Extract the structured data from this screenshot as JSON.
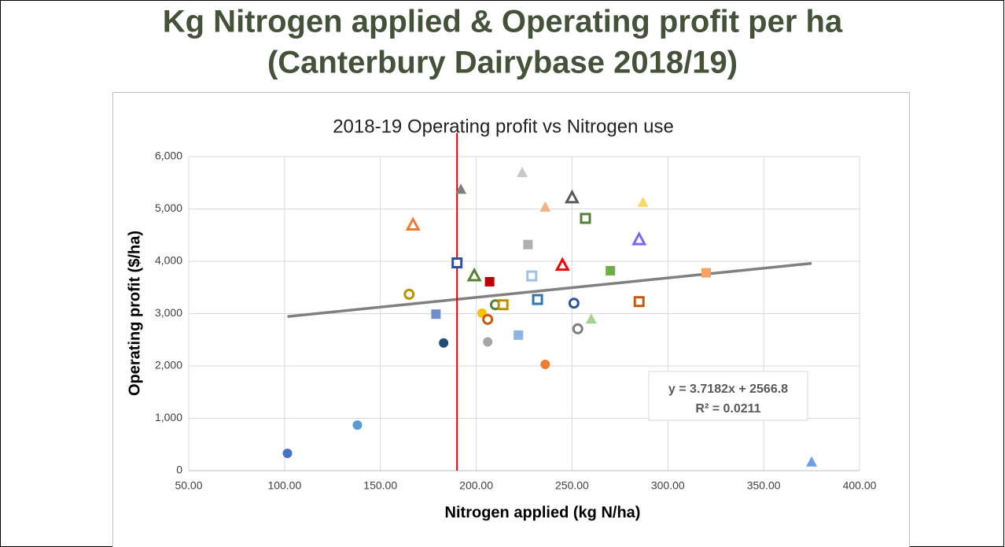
{
  "chart_data": {
    "type": "scatter",
    "slide_title": [
      "Kg Nitrogen applied & Operating profit per ha",
      "(Canterbury Dairybase 2018/19)"
    ],
    "title": "2018-19 Operating profit vs Nitrogen use",
    "x_label": "Nitrogen applied (kg N/ha)",
    "y_label": "Operating profit ($/ha)",
    "xlim": [
      50,
      400
    ],
    "ylim": [
      0,
      6000
    ],
    "xticks": [
      {
        "value": 50,
        "label": "50.00"
      },
      {
        "value": 100,
        "label": "100.00"
      },
      {
        "value": 150,
        "label": "150.00"
      },
      {
        "value": 200,
        "label": "200.00"
      },
      {
        "value": 250,
        "label": "250.00"
      },
      {
        "value": 300,
        "label": "300.00"
      },
      {
        "value": 350,
        "label": "350.00"
      },
      {
        "value": 400,
        "label": "400.00"
      }
    ],
    "yticks": [
      0,
      {
        "value": 1000,
        "label": "1,000"
      },
      {
        "value": 2000,
        "label": "2,000"
      },
      {
        "value": 3000,
        "label": "3,000"
      },
      {
        "value": 4000,
        "label": "4,000"
      },
      {
        "value": 5000,
        "label": "5,000"
      },
      {
        "value": 6000,
        "label": "6,000"
      }
    ],
    "grid": true,
    "x": [
      101.5,
      138,
      183,
      165,
      167,
      179,
      190,
      192,
      199,
      203,
      206,
      206,
      207,
      210,
      214,
      222,
      224,
      227,
      229,
      232,
      236,
      236,
      245,
      250,
      251,
      253,
      257,
      260,
      270,
      285,
      285,
      287,
      320,
      375
    ],
    "y": [
      330,
      870,
      2440,
      3370,
      4700,
      2990,
      3970,
      5380,
      3730,
      3010,
      2890,
      2460,
      3610,
      3170,
      3170,
      2590,
      5700,
      4320,
      3720,
      3270,
      5040,
      2030,
      3930,
      5220,
      3200,
      2710,
      4820,
      2900,
      3820,
      4420,
      3230,
      5130,
      3780,
      170
    ],
    "markers": [
      "circle",
      "circle",
      "circle",
      "open-circle",
      "open-triangle",
      "square",
      "open-square",
      "triangle",
      "open-triangle",
      "circle",
      "open-circle",
      "circle",
      "square",
      "open-circle",
      "open-square",
      "square",
      "triangle",
      "square",
      "open-square",
      "open-square",
      "triangle",
      "circle",
      "open-triangle",
      "open-triangle",
      "open-circle",
      "open-circle",
      "open-square",
      "triangle",
      "square",
      "open-triangle",
      "open-square",
      "triangle",
      "square",
      "triangle"
    ],
    "colors": [
      "#4472c4",
      "#5b9bd5",
      "#1f4e79",
      "#bf9000",
      "#ed7d31",
      "#6f8fd0",
      "#2f4f9f",
      "#7f7f7f",
      "#548235",
      "#ffc000",
      "#c55a11",
      "#a5a5a5",
      "#c00000",
      "#548235",
      "#bf9000",
      "#8fb4e3",
      "#c9c9c9",
      "#b0b0b0",
      "#9dc3e6",
      "#2e75b6",
      "#f4b183",
      "#ed7d31",
      "#ff0000",
      "#595959",
      "#2f5597",
      "#7f7f7f",
      "#548235",
      "#a9d18e",
      "#70ad47",
      "#7b68ee",
      "#c55a11",
      "#ffd966",
      "#f4a460",
      "#6d9eeb"
    ],
    "trendline": {
      "slope": 3.7182,
      "intercept": 2566.8,
      "x": [
        101.5,
        375
      ],
      "color": "#808080"
    },
    "equation_label": "y = 3.7182x + 2566.8",
    "r2_label": "R² = 0.0211",
    "reference_line": {
      "x": 190,
      "color": "#e00000"
    }
  }
}
